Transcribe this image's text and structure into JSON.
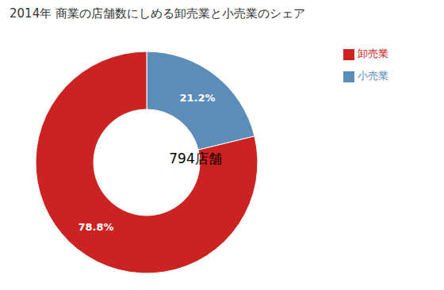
{
  "chart_data": {
    "type": "pie",
    "title": "2014年 商業の店舗数にしめる卸売業と小売業のシェア",
    "annotation": "794店舗",
    "categories": [
      "小売業",
      "卸売業"
    ],
    "values": [
      21.2,
      78.8
    ],
    "value_labels": [
      "21.2%",
      "78.8%"
    ],
    "colors": [
      "#5B8DB8",
      "#CC2222"
    ],
    "data_labels": true,
    "legend": "upper right"
  }
}
